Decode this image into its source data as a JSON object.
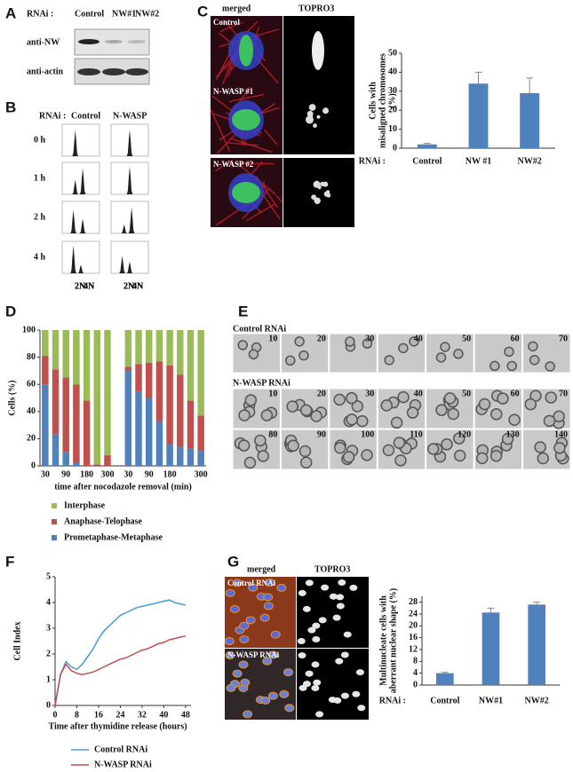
{
  "panel_letters": [
    "A",
    "B",
    "C",
    "D",
    "E",
    "F",
    "G"
  ],
  "panel_a": {
    "rnai_label": "RNAi :",
    "lanes": [
      "Control",
      "NW#1",
      "NW#2"
    ],
    "blots": [
      "anti-NW",
      "anti-actin"
    ]
  },
  "panel_b": {
    "rnai_label": "RNAi :",
    "conditions": [
      "Control",
      "N-WASP"
    ],
    "times": [
      "0 h",
      "1 h",
      "2 h",
      "4 h"
    ],
    "peaks": [
      "2N",
      "4N"
    ]
  },
  "panel_c": {
    "columns": [
      "merged",
      "TOPRO3"
    ],
    "rows": [
      "Control",
      "N-WASP #1",
      "N-WASP #2"
    ]
  },
  "panel_e": {
    "control_label": "Control RNAi",
    "control_frames": [
      "10",
      "20",
      "30",
      "40",
      "50",
      "60",
      "70"
    ],
    "nwasp_label": "N-WASP RNAi",
    "nwasp_frames": [
      [
        "10",
        "20",
        "30",
        "40",
        "50",
        "60",
        "70"
      ],
      [
        "80",
        "90",
        "100",
        "110",
        "120",
        "130",
        "140"
      ]
    ]
  },
  "panel_g": {
    "columns": [
      "merged",
      "TOPRO3"
    ],
    "rows": [
      "Control RNAi",
      "N-WASP RNAi"
    ]
  },
  "chart_data": [
    {
      "type": "bar",
      "ylabel": [
        "Cells with",
        "misaligned chromosomes",
        "(%)"
      ],
      "xlabel": "RNAi :",
      "categories": [
        "Control",
        "NW #1",
        "NW#2"
      ],
      "values": [
        2,
        34,
        29
      ],
      "errors": [
        0.5,
        6,
        8
      ],
      "color": "#4f81bd",
      "ylim": [
        0,
        50
      ],
      "yticks": [
        0,
        10,
        20,
        30,
        40,
        50
      ]
    },
    {
      "type": "bar",
      "stacked": true,
      "ylabel": [
        "Cells (%)"
      ],
      "xlabel": "time after nocodazole removal (min)",
      "categories": [
        "30",
        null,
        "90",
        null,
        "180",
        null,
        "300",
        null,
        "30",
        null,
        "90",
        null,
        "180",
        null,
        null,
        "300"
      ],
      "series": [
        {
          "name": "Prometaphase-Metaphase",
          "color": "#4f81bd",
          "values": [
            60,
            23,
            10,
            2,
            0,
            0,
            0,
            null,
            70,
            55,
            50,
            33,
            16,
            14,
            13,
            11
          ]
        },
        {
          "name": "Anaphase-Telophase",
          "color": "#c0504d",
          "values": [
            21,
            48,
            55,
            58,
            48,
            1,
            8,
            null,
            3,
            20,
            26,
            44,
            58,
            53,
            35,
            26
          ]
        },
        {
          "name": "Interphase",
          "color": "#9bbb59",
          "values": [
            19,
            29,
            35,
            40,
            52,
            99,
            92,
            null,
            27,
            25,
            24,
            23,
            26,
            33,
            52,
            63
          ]
        }
      ],
      "ylim": [
        0,
        100
      ],
      "yticks": [
        0,
        20,
        40,
        60,
        80,
        100
      ]
    },
    {
      "type": "line",
      "ylabel": [
        "Cell Index"
      ],
      "xlabel": "Time after thymidine release (hours)",
      "x": [
        0,
        2,
        4,
        6,
        8,
        10,
        12,
        14,
        16,
        18,
        20,
        22,
        24,
        26,
        28,
        30,
        32,
        34,
        36,
        38,
        40,
        42,
        44,
        46,
        48
      ],
      "series": [
        {
          "name": "Control RNAi",
          "color": "#4a9bd4",
          "values": [
            0,
            1.2,
            1.7,
            1.5,
            1.4,
            1.6,
            1.9,
            2.2,
            2.6,
            2.9,
            3.1,
            3.3,
            3.5,
            3.6,
            3.7,
            3.8,
            3.85,
            3.9,
            3.95,
            4.0,
            4.05,
            4.1,
            4.0,
            3.95,
            3.9
          ]
        },
        {
          "name": "N-WASP RNAi",
          "color": "#c0504d",
          "values": [
            0,
            1.2,
            1.6,
            1.35,
            1.25,
            1.2,
            1.25,
            1.3,
            1.4,
            1.5,
            1.6,
            1.7,
            1.8,
            1.85,
            1.95,
            2.05,
            2.15,
            2.2,
            2.3,
            2.4,
            2.45,
            2.55,
            2.6,
            2.65,
            2.7
          ]
        }
      ],
      "xlim": [
        0,
        50
      ],
      "xticks": [
        0,
        8,
        16,
        24,
        32,
        40,
        48
      ],
      "ylim": [
        0,
        5
      ],
      "yticks": [
        0,
        1,
        2,
        3,
        4,
        5
      ]
    },
    {
      "type": "bar",
      "ylabel": [
        "Multinucleate cells with",
        "aberrant nuclear shape (%)"
      ],
      "xlabel": "RNAi :",
      "categories": [
        "Control",
        "NW#1",
        "NW#2"
      ],
      "values": [
        4,
        24.5,
        27.2
      ],
      "errors": [
        0.3,
        1.5,
        0.8
      ],
      "color": "#4f81bd",
      "ylim": [
        0,
        30
      ],
      "yticks": [
        0,
        4,
        8,
        12,
        16,
        20,
        24,
        28
      ]
    }
  ]
}
